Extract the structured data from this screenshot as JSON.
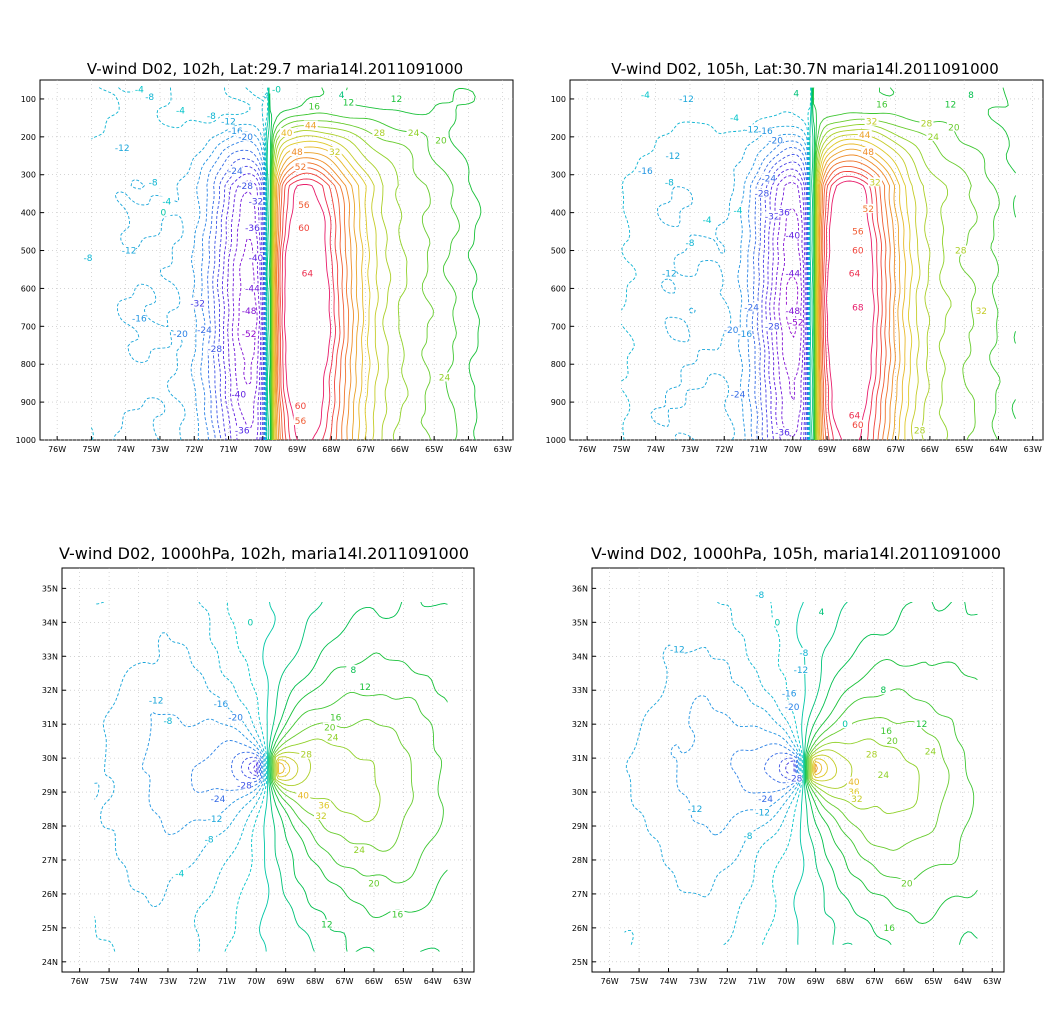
{
  "figure": {
    "panels": [
      {
        "id": "cross-102h",
        "title": "V-wind D02, 102h, Lat:29.7 maria14l.2011091000",
        "kind": "cross-section"
      },
      {
        "id": "cross-105h",
        "title": "V-wind D02, 105h, Lat:30.7N maria14l.2011091000",
        "kind": "cross-section"
      },
      {
        "id": "plan-102h",
        "title": "V-wind D02, 1000hPa, 102h, maria14l.2011091000",
        "kind": "plan-view"
      },
      {
        "id": "plan-105h",
        "title": "V-wind D02, 1000hPa, 105h, maria14l.2011091000",
        "kind": "plan-view"
      }
    ]
  },
  "chart_data": [
    {
      "type": "contour",
      "title": "V-wind D02, 102h, Lat:29.7 maria14l.2011091000",
      "xlabel": "",
      "ylabel": "",
      "x_ticks": [
        "76W",
        "75W",
        "74W",
        "73W",
        "72W",
        "71W",
        "70W",
        "69W",
        "68W",
        "67W",
        "66W",
        "65W",
        "64W",
        "63W"
      ],
      "y_ticks": [
        "100",
        "200",
        "300",
        "400",
        "500",
        "600",
        "700",
        "800",
        "900",
        "1000"
      ],
      "xlim": [
        -76.5,
        -62.7
      ],
      "ylim": [
        1000,
        50
      ],
      "grid": true,
      "contour_interval": 4,
      "negative_style": "dashed",
      "field": {
        "xc": -69.8,
        "xmin": -75,
        "xmax": -63.5,
        "pbot": 1000,
        "ptop": 70,
        "neg_peak": -54,
        "pos_peak": 68,
        "neg_width": 1.3,
        "pos_width": 1.35,
        "neg_level": 620,
        "pos_level": 660,
        "upper_amp": 12,
        "upper_west": -8,
        "upper_east": 28
      },
      "contour_labels": [
        {
          "x": -72.4,
          "p": 130,
          "text": "-4"
        },
        {
          "x": -71.5,
          "p": 145,
          "text": "-8"
        },
        {
          "x": -71.0,
          "p": 160,
          "text": "-12"
        },
        {
          "x": -70.8,
          "p": 185,
          "text": "-16"
        },
        {
          "x": -70.5,
          "p": 200,
          "text": "-20"
        },
        {
          "x": -70.8,
          "p": 290,
          "text": "-24"
        },
        {
          "x": -70.5,
          "p": 330,
          "text": "-28"
        },
        {
          "x": -70.2,
          "p": 370,
          "text": "-32"
        },
        {
          "x": -70.3,
          "p": 440,
          "text": "-36"
        },
        {
          "x": -70.2,
          "p": 520,
          "text": "-40"
        },
        {
          "x": -70.3,
          "p": 600,
          "text": "-44"
        },
        {
          "x": -70.4,
          "p": 660,
          "text": "-48"
        },
        {
          "x": -70.4,
          "p": 720,
          "text": "-52"
        },
        {
          "x": -69.3,
          "p": 190,
          "text": "40"
        },
        {
          "x": -69.0,
          "p": 240,
          "text": "48"
        },
        {
          "x": -68.9,
          "p": 280,
          "text": "52"
        },
        {
          "x": -68.8,
          "p": 380,
          "text": "56"
        },
        {
          "x": -68.8,
          "p": 440,
          "text": "60"
        },
        {
          "x": -68.7,
          "p": 560,
          "text": "64"
        },
        {
          "x": -68.9,
          "p": 910,
          "text": "60"
        },
        {
          "x": -68.9,
          "p": 950,
          "text": "56"
        },
        {
          "x": -68.6,
          "p": 170,
          "text": "44"
        },
        {
          "x": -67.9,
          "p": 240,
          "text": "32"
        },
        {
          "x": -66.6,
          "p": 190,
          "text": "28"
        },
        {
          "x": -65.6,
          "p": 190,
          "text": "24"
        },
        {
          "x": -64.8,
          "p": 210,
          "text": "20"
        },
        {
          "x": -68.5,
          "p": 120,
          "text": "16"
        },
        {
          "x": -67.5,
          "p": 110,
          "text": "12"
        },
        {
          "x": -74.1,
          "p": 230,
          "text": "-12"
        },
        {
          "x": -73.2,
          "p": 320,
          "text": "-8"
        },
        {
          "x": -72.8,
          "p": 370,
          "text": "-4"
        },
        {
          "x": -72.9,
          "p": 400,
          "text": "0"
        },
        {
          "x": -75.1,
          "p": 520,
          "text": "-8"
        },
        {
          "x": -73.9,
          "p": 500,
          "text": "-12"
        },
        {
          "x": -73.6,
          "p": 680,
          "text": "-16"
        },
        {
          "x": -72.4,
          "p": 720,
          "text": "-20"
        },
        {
          "x": -71.7,
          "p": 710,
          "text": "-24"
        },
        {
          "x": -71.4,
          "p": 760,
          "text": "-28"
        },
        {
          "x": -71.9,
          "p": 640,
          "text": "-32"
        },
        {
          "x": -70.7,
          "p": 880,
          "text": "-40"
        },
        {
          "x": -70.6,
          "p": 975,
          "text": "-36"
        },
        {
          "x": -64.7,
          "p": 835,
          "text": "24"
        },
        {
          "x": -73.3,
          "p": 95,
          "text": "-8"
        },
        {
          "x": -73.6,
          "p": 75,
          "text": "-4"
        },
        {
          "x": -69.6,
          "p": 75,
          "text": "-0"
        },
        {
          "x": -67.7,
          "p": 90,
          "text": "4"
        },
        {
          "x": -66.1,
          "p": 100,
          "text": "12"
        }
      ]
    },
    {
      "type": "contour",
      "title": "V-wind D02, 105h, Lat:30.7N maria14l.2011091000",
      "xlabel": "",
      "ylabel": "",
      "x_ticks": [
        "76W",
        "75W",
        "74W",
        "73W",
        "72W",
        "71W",
        "70W",
        "69W",
        "68W",
        "67W",
        "66W",
        "65W",
        "64W",
        "63W"
      ],
      "y_ticks": [
        "100",
        "200",
        "300",
        "400",
        "500",
        "600",
        "700",
        "800",
        "900",
        "1000"
      ],
      "xlim": [
        -76.5,
        -62.7
      ],
      "ylim": [
        1000,
        50
      ],
      "grid": true,
      "contour_interval": 4,
      "negative_style": "dashed",
      "field": {
        "xc": -69.4,
        "xmin": -75,
        "xmax": -63.5,
        "pbot": 1000,
        "ptop": 70,
        "neg_peak": -56,
        "pos_peak": 70,
        "neg_width": 1.25,
        "pos_width": 1.3,
        "neg_level": 640,
        "pos_level": 640,
        "upper_amp": 14,
        "upper_west": -6,
        "upper_east": 32
      },
      "contour_labels": [
        {
          "x": -71.7,
          "p": 150,
          "text": "-4"
        },
        {
          "x": -71.2,
          "p": 180,
          "text": "-12"
        },
        {
          "x": -70.8,
          "p": 185,
          "text": "-16"
        },
        {
          "x": -70.5,
          "p": 210,
          "text": "-20"
        },
        {
          "x": -70.7,
          "p": 310,
          "text": "-24"
        },
        {
          "x": -70.9,
          "p": 350,
          "text": "-28"
        },
        {
          "x": -70.6,
          "p": 410,
          "text": "-32"
        },
        {
          "x": -70.3,
          "p": 400,
          "text": "-36"
        },
        {
          "x": -70.0,
          "p": 460,
          "text": "-40"
        },
        {
          "x": -70.0,
          "p": 560,
          "text": "-44"
        },
        {
          "x": -70.0,
          "p": 660,
          "text": "-48"
        },
        {
          "x": -69.9,
          "p": 690,
          "text": "-52"
        },
        {
          "x": -67.7,
          "p": 160,
          "text": "32"
        },
        {
          "x": -67.9,
          "p": 195,
          "text": "44"
        },
        {
          "x": -67.8,
          "p": 240,
          "text": "48"
        },
        {
          "x": -67.8,
          "p": 390,
          "text": "52"
        },
        {
          "x": -68.1,
          "p": 450,
          "text": "56"
        },
        {
          "x": -68.1,
          "p": 500,
          "text": "60"
        },
        {
          "x": -68.2,
          "p": 560,
          "text": "64"
        },
        {
          "x": -68.1,
          "p": 650,
          "text": "68"
        },
        {
          "x": -68.2,
          "p": 935,
          "text": "64"
        },
        {
          "x": -68.1,
          "p": 960,
          "text": "60"
        },
        {
          "x": -67.6,
          "p": 320,
          "text": "32"
        },
        {
          "x": -66.1,
          "p": 165,
          "text": "28"
        },
        {
          "x": -65.9,
          "p": 200,
          "text": "24"
        },
        {
          "x": -65.3,
          "p": 175,
          "text": "20"
        },
        {
          "x": -67.4,
          "p": 115,
          "text": "16"
        },
        {
          "x": -65.4,
          "p": 115,
          "text": "12"
        },
        {
          "x": -64.8,
          "p": 90,
          "text": "8"
        },
        {
          "x": -65.1,
          "p": 500,
          "text": "28"
        },
        {
          "x": -64.5,
          "p": 660,
          "text": "32"
        },
        {
          "x": -74.3,
          "p": 290,
          "text": "-16"
        },
        {
          "x": -73.5,
          "p": 250,
          "text": "-12"
        },
        {
          "x": -73.6,
          "p": 320,
          "text": "-8"
        },
        {
          "x": -72.5,
          "p": 420,
          "text": "-4"
        },
        {
          "x": -73.0,
          "p": 480,
          "text": "-8"
        },
        {
          "x": -73.6,
          "p": 560,
          "text": "-12"
        },
        {
          "x": -71.2,
          "p": 650,
          "text": "-24"
        },
        {
          "x": -71.8,
          "p": 710,
          "text": "-20"
        },
        {
          "x": -71.4,
          "p": 720,
          "text": "-16"
        },
        {
          "x": -70.6,
          "p": 700,
          "text": "-28"
        },
        {
          "x": -71.6,
          "p": 880,
          "text": "-24"
        },
        {
          "x": -70.3,
          "p": 980,
          "text": "-36"
        },
        {
          "x": -73.1,
          "p": 100,
          "text": "-12"
        },
        {
          "x": -74.3,
          "p": 90,
          "text": "-4"
        },
        {
          "x": -69.9,
          "p": 85,
          "text": "4"
        },
        {
          "x": -66.3,
          "p": 975,
          "text": "28"
        },
        {
          "x": -71.6,
          "p": 395,
          "text": "-4"
        }
      ]
    },
    {
      "type": "contour",
      "title": "V-wind D02, 1000hPa, 102h, maria14l.2011091000",
      "xlabel": "",
      "ylabel": "",
      "x_ticks": [
        "76W",
        "75W",
        "74W",
        "73W",
        "72W",
        "71W",
        "70W",
        "69W",
        "68W",
        "67W",
        "66W",
        "65W",
        "64W",
        "63W"
      ],
      "y_ticks": [
        "24N",
        "25N",
        "26N",
        "27N",
        "28N",
        "29N",
        "30N",
        "31N",
        "32N",
        "33N",
        "34N",
        "35N"
      ],
      "xlim": [
        -76.6,
        -62.6
      ],
      "ylim": [
        23.7,
        35.6
      ],
      "grid": true,
      "contour_interval": 4,
      "negative_style": "dashed",
      "field": {
        "cx": -69.6,
        "cy": 29.7,
        "lon_min": -75.5,
        "lon_max": -63.5,
        "lat_min": 24.3,
        "lat_max": 34.6,
        "neg_peak": -44,
        "pos_peak": 48,
        "neg_rx": 1.3,
        "neg_ry": 1.15,
        "pos_rx": 1.6,
        "pos_ry": 1.4
      },
      "contour_labels": [
        {
          "x": -70.2,
          "y": 34.0,
          "text": "0"
        },
        {
          "x": -73.4,
          "y": 31.7,
          "text": "-12"
        },
        {
          "x": -73.0,
          "y": 31.1,
          "text": "-8"
        },
        {
          "x": -71.2,
          "y": 31.6,
          "text": "-16"
        },
        {
          "x": -70.7,
          "y": 31.2,
          "text": "-20"
        },
        {
          "x": -70.4,
          "y": 29.2,
          "text": "-28"
        },
        {
          "x": -71.3,
          "y": 28.8,
          "text": "-24"
        },
        {
          "x": -71.4,
          "y": 28.2,
          "text": "-12"
        },
        {
          "x": -71.6,
          "y": 27.6,
          "text": "-8"
        },
        {
          "x": -72.6,
          "y": 26.6,
          "text": "-4"
        },
        {
          "x": -68.3,
          "y": 30.1,
          "text": "28"
        },
        {
          "x": -67.4,
          "y": 30.6,
          "text": "24"
        },
        {
          "x": -67.5,
          "y": 30.9,
          "text": "20"
        },
        {
          "x": -67.3,
          "y": 31.2,
          "text": "16"
        },
        {
          "x": -66.3,
          "y": 32.1,
          "text": "12"
        },
        {
          "x": -66.7,
          "y": 32.6,
          "text": "8"
        },
        {
          "x": -68.4,
          "y": 28.9,
          "text": "40"
        },
        {
          "x": -67.7,
          "y": 28.6,
          "text": "36"
        },
        {
          "x": -67.8,
          "y": 28.3,
          "text": "32"
        },
        {
          "x": -66.5,
          "y": 27.3,
          "text": "24"
        },
        {
          "x": -66.0,
          "y": 26.3,
          "text": "20"
        },
        {
          "x": -65.2,
          "y": 25.4,
          "text": "16"
        },
        {
          "x": -67.6,
          "y": 25.1,
          "text": "12"
        }
      ]
    },
    {
      "type": "contour",
      "title": "V-wind D02, 1000hPa, 105h, maria14l.2011091000",
      "xlabel": "",
      "ylabel": "",
      "x_ticks": [
        "76W",
        "75W",
        "74W",
        "73W",
        "72W",
        "71W",
        "70W",
        "69W",
        "68W",
        "67W",
        "66W",
        "65W",
        "64W",
        "63W"
      ],
      "y_ticks": [
        "25N",
        "26N",
        "27N",
        "28N",
        "29N",
        "30N",
        "31N",
        "32N",
        "33N",
        "34N",
        "35N",
        "36N"
      ],
      "xlim": [
        -76.6,
        -62.6
      ],
      "ylim": [
        24.7,
        36.6
      ],
      "grid": true,
      "contour_interval": 4,
      "negative_style": "dashed",
      "field": {
        "cx": -69.4,
        "cy": 30.7,
        "lon_min": -75.5,
        "lon_max": -63.5,
        "lat_min": 25.5,
        "lat_max": 35.6,
        "neg_peak": -44,
        "pos_peak": 48,
        "neg_rx": 1.3,
        "neg_ry": 1.2,
        "pos_rx": 1.7,
        "pos_ry": 1.4
      },
      "contour_labels": [
        {
          "x": -70.9,
          "y": 35.8,
          "text": "-8"
        },
        {
          "x": -70.3,
          "y": 35.0,
          "text": "0"
        },
        {
          "x": -68.8,
          "y": 35.3,
          "text": "4"
        },
        {
          "x": -73.7,
          "y": 34.2,
          "text": "-12"
        },
        {
          "x": -69.4,
          "y": 34.1,
          "text": "-8"
        },
        {
          "x": -69.5,
          "y": 33.6,
          "text": "-12"
        },
        {
          "x": -69.9,
          "y": 32.9,
          "text": "-16"
        },
        {
          "x": -69.8,
          "y": 32.5,
          "text": "-20"
        },
        {
          "x": -69.7,
          "y": 30.4,
          "text": "-28"
        },
        {
          "x": -70.7,
          "y": 29.8,
          "text": "-24"
        },
        {
          "x": -70.8,
          "y": 29.4,
          "text": "-12"
        },
        {
          "x": -71.3,
          "y": 28.7,
          "text": "-8"
        },
        {
          "x": -73.1,
          "y": 29.5,
          "text": "-12"
        },
        {
          "x": -68.0,
          "y": 32.0,
          "text": "0"
        },
        {
          "x": -66.7,
          "y": 33.0,
          "text": "8"
        },
        {
          "x": -65.4,
          "y": 32.0,
          "text": "12"
        },
        {
          "x": -66.6,
          "y": 31.8,
          "text": "16"
        },
        {
          "x": -66.4,
          "y": 31.5,
          "text": "20"
        },
        {
          "x": -67.1,
          "y": 31.1,
          "text": "28"
        },
        {
          "x": -65.1,
          "y": 31.2,
          "text": "24"
        },
        {
          "x": -67.7,
          "y": 30.3,
          "text": "40"
        },
        {
          "x": -67.7,
          "y": 30.0,
          "text": "36"
        },
        {
          "x": -67.6,
          "y": 29.8,
          "text": "32"
        },
        {
          "x": -65.9,
          "y": 27.3,
          "text": "20"
        },
        {
          "x": -66.5,
          "y": 26.0,
          "text": "16"
        },
        {
          "x": -66.7,
          "y": 30.5,
          "text": "24"
        }
      ]
    }
  ]
}
